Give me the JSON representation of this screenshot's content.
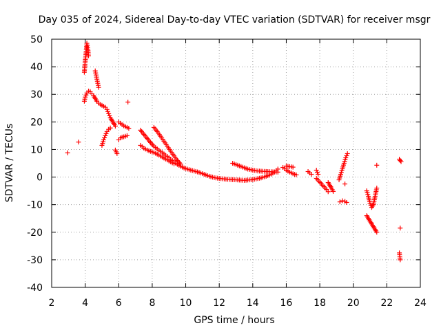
{
  "chart_data": {
    "type": "scatter",
    "title": "Day 035 of 2024, Sidereal Day-to-day VTEC variation (SDTVAR) for receiver msgr",
    "xlabel": "GPS time / hours",
    "ylabel": "SDTVAR / TECUs",
    "xlim": [
      2,
      24
    ],
    "ylim": [
      -40,
      50
    ],
    "xticks": [
      2,
      4,
      6,
      8,
      10,
      12,
      14,
      16,
      18,
      20,
      22,
      24
    ],
    "yticks": [
      -40,
      -30,
      -20,
      -10,
      0,
      10,
      20,
      30,
      40,
      50
    ],
    "grid": true,
    "marker": "plus",
    "color": "#ff0000",
    "series": [
      {
        "name": "SDTVAR",
        "segments": [
          [
            [
              2.95,
              8.8
            ]
          ],
          [
            [
              3.6,
              12.7
            ]
          ],
          [
            [
              3.95,
              38.0
            ],
            [
              4.0,
              42.0
            ],
            [
              4.05,
              45.0
            ],
            [
              4.1,
              48.5
            ],
            [
              4.15,
              47.0
            ],
            [
              4.2,
              44.0
            ]
          ],
          [
            [
              3.95,
              27.5
            ],
            [
              4.0,
              29.0
            ],
            [
              4.1,
              30.5
            ],
            [
              4.2,
              31.2
            ],
            [
              4.3,
              31.0
            ],
            [
              4.4,
              30.2
            ],
            [
              4.5,
              29.5
            ],
            [
              4.6,
              28.5
            ],
            [
              4.7,
              27.5
            ],
            [
              4.8,
              26.8
            ],
            [
              4.9,
              26.3
            ],
            [
              5.0,
              26.0
            ],
            [
              5.1,
              25.7
            ],
            [
              5.2,
              25.3
            ],
            [
              5.3,
              24.5
            ],
            [
              5.4,
              23.0
            ],
            [
              5.5,
              21.5
            ],
            [
              5.6,
              20.5
            ],
            [
              5.7,
              19.5
            ],
            [
              5.8,
              18.5
            ]
          ],
          [
            [
              4.6,
              38.5
            ],
            [
              4.65,
              37.0
            ],
            [
              4.7,
              35.5
            ],
            [
              4.75,
              34.0
            ],
            [
              4.8,
              32.5
            ]
          ],
          [
            [
              5.0,
              11.5
            ],
            [
              5.1,
              13.5
            ],
            [
              5.2,
              15.0
            ],
            [
              5.3,
              16.5
            ],
            [
              5.4,
              17.3
            ],
            [
              5.5,
              17.8
            ]
          ],
          [
            [
              5.8,
              9.8
            ],
            [
              5.9,
              8.5
            ]
          ],
          [
            [
              6.0,
              20.0
            ],
            [
              6.1,
              19.5
            ],
            [
              6.2,
              19.0
            ],
            [
              6.3,
              18.6
            ],
            [
              6.4,
              18.3
            ],
            [
              6.5,
              18.0
            ],
            [
              6.6,
              17.7
            ]
          ],
          [
            [
              6.0,
              13.5
            ],
            [
              6.1,
              14.2
            ],
            [
              6.2,
              14.5
            ],
            [
              6.3,
              14.6
            ],
            [
              6.4,
              14.8
            ],
            [
              6.5,
              15.0
            ]
          ],
          [
            [
              6.55,
              27.2
            ]
          ],
          [
            [
              7.3,
              17.0
            ],
            [
              7.5,
              15.5
            ],
            [
              7.7,
              14.0
            ],
            [
              7.9,
              12.5
            ],
            [
              8.1,
              11.2
            ],
            [
              8.3,
              10.2
            ],
            [
              8.5,
              9.3
            ],
            [
              8.7,
              8.4
            ],
            [
              8.9,
              7.5
            ],
            [
              9.1,
              6.5
            ],
            [
              9.3,
              5.5
            ],
            [
              9.5,
              4.6
            ],
            [
              9.7,
              3.9
            ],
            [
              9.9,
              3.3
            ],
            [
              10.2,
              2.7
            ],
            [
              10.5,
              2.2
            ],
            [
              10.8,
              1.7
            ],
            [
              11.1,
              1.0
            ],
            [
              11.4,
              0.3
            ],
            [
              11.7,
              -0.2
            ],
            [
              12.0,
              -0.5
            ],
            [
              12.5,
              -0.8
            ],
            [
              13.0,
              -1.0
            ],
            [
              13.5,
              -1.2
            ],
            [
              14.0,
              -0.9
            ],
            [
              14.5,
              -0.3
            ],
            [
              15.0,
              0.7
            ],
            [
              15.3,
              1.8
            ],
            [
              15.5,
              2.9
            ]
          ],
          [
            [
              7.3,
              11.5
            ],
            [
              7.5,
              10.5
            ],
            [
              7.7,
              9.8
            ],
            [
              7.9,
              9.3
            ],
            [
              8.1,
              8.9
            ],
            [
              8.3,
              8.3
            ],
            [
              8.5,
              7.6
            ],
            [
              8.7,
              6.9
            ],
            [
              8.9,
              6.2
            ],
            [
              9.1,
              5.5
            ],
            [
              9.3,
              4.8
            ]
          ],
          [
            [
              8.1,
              18.0
            ],
            [
              8.3,
              16.5
            ],
            [
              8.5,
              14.8
            ],
            [
              8.7,
              13.0
            ],
            [
              8.9,
              11.2
            ],
            [
              9.1,
              9.4
            ],
            [
              9.3,
              7.7
            ],
            [
              9.5,
              6.0
            ],
            [
              9.7,
              4.7
            ]
          ],
          [
            [
              12.8,
              5.0
            ],
            [
              13.1,
              4.3
            ],
            [
              13.4,
              3.6
            ],
            [
              13.7,
              2.9
            ],
            [
              14.0,
              2.5
            ],
            [
              14.3,
              2.2
            ],
            [
              14.6,
              2.1
            ],
            [
              14.9,
              2.0
            ],
            [
              15.2,
              1.9
            ],
            [
              15.5,
              1.8
            ]
          ],
          [
            [
              15.8,
              3.5
            ],
            [
              16.0,
              2.5
            ],
            [
              16.2,
              1.8
            ],
            [
              16.4,
              1.2
            ],
            [
              16.6,
              0.8
            ]
          ],
          [
            [
              16.0,
              4.0
            ],
            [
              16.2,
              3.8
            ],
            [
              16.4,
              3.6
            ]
          ],
          [
            [
              17.3,
              2.0
            ],
            [
              17.5,
              1.0
            ]
          ],
          [
            [
              17.8,
              2.5
            ],
            [
              17.9,
              1.0
            ]
          ],
          [
            [
              17.8,
              -0.5
            ],
            [
              17.95,
              -1.5
            ],
            [
              18.1,
              -2.5
            ],
            [
              18.25,
              -3.5
            ],
            [
              18.4,
              -4.5
            ],
            [
              18.5,
              -5.3
            ]
          ],
          [
            [
              18.5,
              -2.0
            ],
            [
              18.6,
              -3.0
            ],
            [
              18.7,
              -4.0
            ],
            [
              18.8,
              -5.2
            ]
          ],
          [
            [
              19.2,
              -9.0
            ],
            [
              19.35,
              -8.6
            ],
            [
              19.5,
              -8.8
            ],
            [
              19.6,
              -9.2
            ]
          ],
          [
            [
              19.15,
              -1.0
            ],
            [
              19.25,
              1.0
            ],
            [
              19.35,
              3.0
            ],
            [
              19.45,
              5.0
            ],
            [
              19.55,
              7.0
            ],
            [
              19.65,
              8.5
            ]
          ],
          [
            [
              19.5,
              -2.5
            ]
          ],
          [
            [
              20.8,
              -14.0
            ],
            [
              20.95,
              -15.5
            ],
            [
              21.1,
              -17.0
            ],
            [
              21.25,
              -18.5
            ],
            [
              21.4,
              -20.0
            ]
          ],
          [
            [
              20.8,
              -5.0
            ],
            [
              20.9,
              -7.0
            ],
            [
              21.0,
              -9.5
            ],
            [
              21.1,
              -11.0
            ],
            [
              21.2,
              -10.0
            ],
            [
              21.3,
              -7.0
            ],
            [
              21.4,
              -4.0
            ]
          ],
          [
            [
              21.4,
              4.3
            ]
          ],
          [
            [
              22.75,
              6.5
            ],
            [
              22.8,
              6.0
            ],
            [
              22.85,
              5.6
            ]
          ],
          [
            [
              22.8,
              -18.5
            ]
          ],
          [
            [
              22.75,
              -27.5
            ],
            [
              22.8,
              -30.0
            ]
          ]
        ]
      }
    ]
  }
}
